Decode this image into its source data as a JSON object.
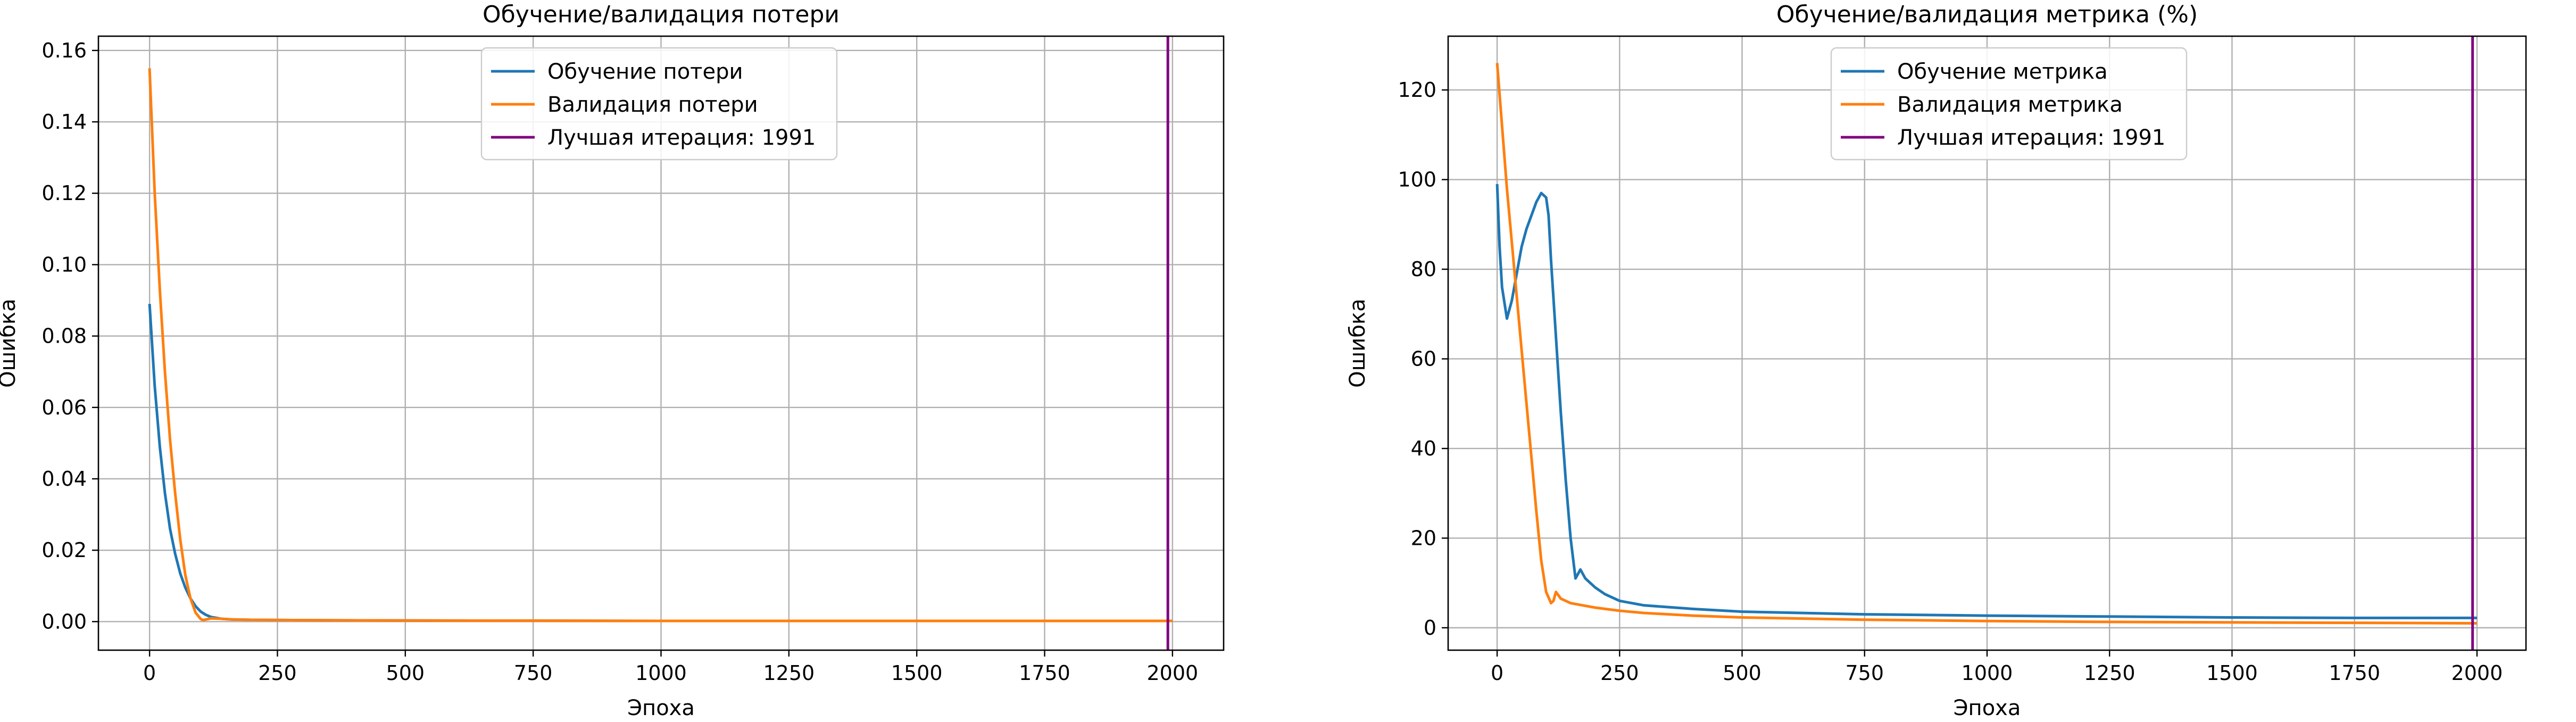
{
  "chart_data": [
    {
      "type": "line",
      "title": "Обучение/валидация потери",
      "xlabel": "Эпоха",
      "ylabel": "Ошибка",
      "xlim": [
        -100,
        2100
      ],
      "ylim": [
        -0.008,
        0.164
      ],
      "xticks": [
        0,
        250,
        500,
        750,
        1000,
        1250,
        1500,
        1750,
        2000
      ],
      "yticks": [
        0.0,
        0.02,
        0.04,
        0.06,
        0.08,
        0.1,
        0.12,
        0.14,
        0.16
      ],
      "ytick_labels": [
        "0.00",
        "0.02",
        "0.04",
        "0.06",
        "0.08",
        "0.10",
        "0.12",
        "0.14",
        "0.16"
      ],
      "grid": true,
      "legend": "top-center",
      "series": [
        {
          "name": "Обучение потери",
          "color": "#1f77b4",
          "x": [
            0,
            10,
            20,
            30,
            40,
            50,
            60,
            70,
            80,
            90,
            100,
            110,
            120,
            140,
            160,
            200,
            300,
            500,
            1000,
            1500,
            2000
          ],
          "y": [
            0.089,
            0.066,
            0.049,
            0.036,
            0.026,
            0.019,
            0.0135,
            0.0095,
            0.0065,
            0.0043,
            0.0028,
            0.0019,
            0.0013,
            0.0008,
            0.0006,
            0.0005,
            0.0004,
            0.0003,
            0.0002,
            0.0002,
            0.0002
          ]
        },
        {
          "name": "Валидация потери",
          "color": "#ff7f0e",
          "x": [
            0,
            10,
            20,
            30,
            40,
            50,
            60,
            70,
            80,
            90,
            100,
            105,
            110,
            120,
            140,
            160,
            200,
            300,
            500,
            1000,
            1500,
            2000
          ],
          "y": [
            0.155,
            0.12,
            0.093,
            0.07,
            0.051,
            0.036,
            0.023,
            0.013,
            0.0065,
            0.0025,
            0.0007,
            0.0004,
            0.0006,
            0.0009,
            0.0008,
            0.0006,
            0.0005,
            0.0004,
            0.0003,
            0.0002,
            0.0002,
            0.0002
          ]
        }
      ],
      "vline": {
        "name": "Лучшая итерация: 1991",
        "x": 1991,
        "color": "#800080"
      }
    },
    {
      "type": "line",
      "title": "Обучение/валидация метрика (%)",
      "xlabel": "Эпоха",
      "ylabel": "Ошибка",
      "xlim": [
        -100,
        2100
      ],
      "ylim": [
        -5,
        132
      ],
      "xticks": [
        0,
        250,
        500,
        750,
        1000,
        1250,
        1500,
        1750,
        2000
      ],
      "yticks": [
        0,
        20,
        40,
        60,
        80,
        100,
        120
      ],
      "ytick_labels": [
        "0",
        "20",
        "40",
        "60",
        "80",
        "100",
        "120"
      ],
      "grid": true,
      "legend": "top-center",
      "series": [
        {
          "name": "Обучение метрика",
          "color": "#1f77b4",
          "x": [
            0,
            5,
            10,
            20,
            30,
            40,
            50,
            60,
            70,
            80,
            90,
            100,
            105,
            110,
            120,
            130,
            140,
            150,
            160,
            170,
            180,
            190,
            200,
            220,
            250,
            300,
            400,
            500,
            750,
            1000,
            1250,
            1500,
            1750,
            2000
          ],
          "y": [
            99,
            85,
            76,
            69,
            73,
            79,
            85,
            89,
            92,
            95,
            97,
            96,
            92,
            82,
            65,
            48,
            33,
            20,
            11,
            13,
            11,
            10,
            9,
            7.5,
            6,
            5,
            4.2,
            3.6,
            3.0,
            2.7,
            2.5,
            2.3,
            2.2,
            2.2
          ]
        },
        {
          "name": "Валидация метрика",
          "color": "#ff7f0e",
          "x": [
            0,
            10,
            20,
            30,
            40,
            50,
            60,
            70,
            80,
            90,
            100,
            110,
            115,
            120,
            130,
            140,
            150,
            175,
            200,
            250,
            300,
            400,
            500,
            750,
            1000,
            1250,
            1500,
            1750,
            2000
          ],
          "y": [
            126,
            112,
            98,
            86,
            74,
            62,
            50,
            38,
            26,
            15,
            8,
            5.5,
            6,
            8,
            6.5,
            6,
            5.5,
            5,
            4.5,
            3.8,
            3.3,
            2.7,
            2.3,
            1.8,
            1.5,
            1.3,
            1.2,
            1.1,
            1.0
          ]
        }
      ],
      "vline": {
        "name": "Лучшая итерация: 1991",
        "x": 1991,
        "color": "#800080"
      }
    }
  ]
}
